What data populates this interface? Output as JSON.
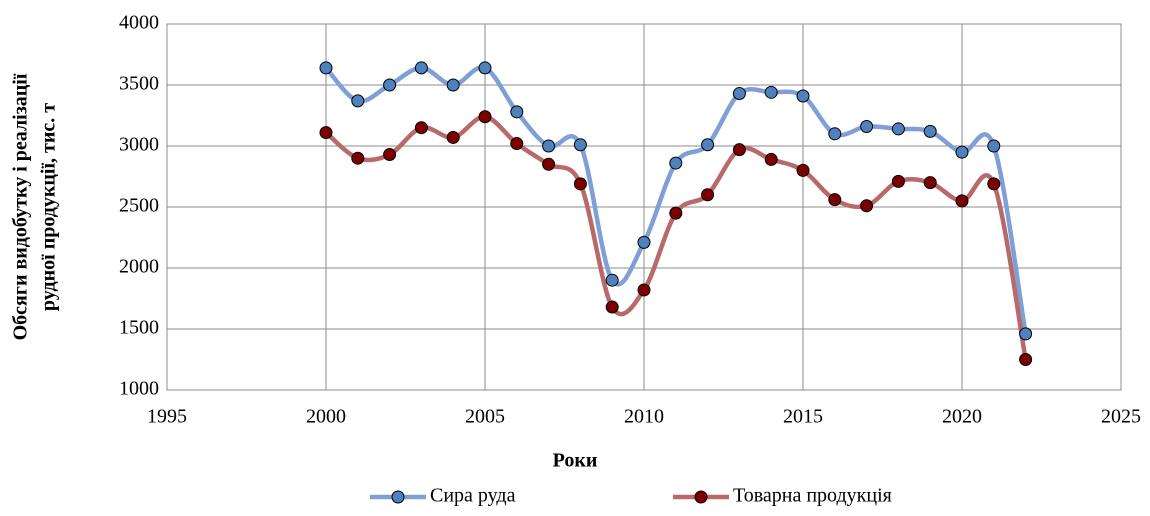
{
  "chart_data": {
    "type": "scatter_smooth",
    "xlabel": "Роки",
    "ylabel": [
      "Обсяги видобутку і реалізації",
      "рудної продукції, тис. т"
    ],
    "xlim": [
      1995,
      2025
    ],
    "xticks": [
      1995,
      2000,
      2005,
      2010,
      2015,
      2020,
      2025
    ],
    "ylim": [
      1000,
      4000
    ],
    "yticks": [
      1000,
      1500,
      2000,
      2500,
      3000,
      3500,
      4000
    ],
    "grid": true,
    "legend": "bottom",
    "x": [
      2000,
      2001,
      2002,
      2003,
      2004,
      2005,
      2006,
      2007,
      2008,
      2009,
      2010,
      2011,
      2012,
      2013,
      2014,
      2015,
      2016,
      2017,
      2018,
      2019,
      2020,
      2021,
      2022
    ],
    "series": [
      {
        "name": "Сира руда",
        "color": "#7f9fd6",
        "marker_color": "#4f81bd",
        "values": [
          3640,
          3370,
          3500,
          3640,
          3500,
          3640,
          3280,
          3000,
          3010,
          1900,
          2210,
          2860,
          3010,
          3430,
          3440,
          3410,
          3100,
          3160,
          3140,
          3120,
          2950,
          3000,
          1460
        ]
      },
      {
        "name": "Товарна продукція",
        "color": "#b86a6a",
        "marker_color": "#7b0000",
        "values": [
          3110,
          2900,
          2930,
          3150,
          3070,
          3240,
          3020,
          2850,
          2690,
          1680,
          1820,
          2450,
          2600,
          2970,
          2890,
          2800,
          2560,
          2510,
          2710,
          2700,
          2550,
          2690,
          1250
        ]
      }
    ]
  }
}
